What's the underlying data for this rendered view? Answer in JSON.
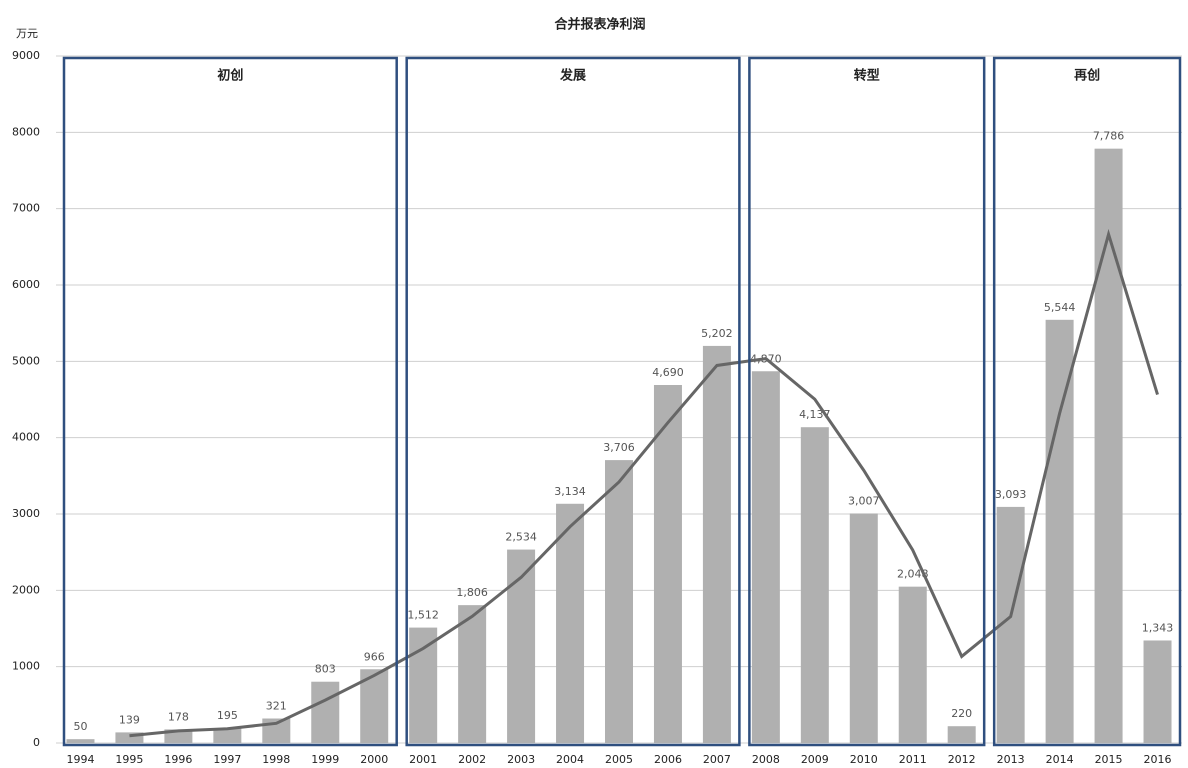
{
  "chart_data": {
    "type": "bar",
    "title": "合并报表净利润",
    "y_label": "万元",
    "categories": [
      "1994",
      "1995",
      "1996",
      "1997",
      "1998",
      "1999",
      "2000",
      "2001",
      "2002",
      "2003",
      "2004",
      "2005",
      "2006",
      "2007",
      "2008",
      "2009",
      "2010",
      "2011",
      "2012",
      "2013",
      "2014",
      "2015",
      "2016"
    ],
    "series": [
      {
        "type": "bar",
        "color": "#b0b0b0",
        "values": [
          50,
          139,
          178,
          195,
          321,
          803,
          966,
          1512,
          1806,
          2534,
          3134,
          3706,
          4690,
          5202,
          4870,
          4137,
          3007,
          2048,
          220,
          3093,
          5544,
          7786,
          1343
        ],
        "value_labels": [
          "50",
          "139",
          "178",
          "195",
          "321",
          "803",
          "966",
          "1,512",
          "1,806",
          "2,534",
          "3,134",
          "3,706",
          "4,690",
          "5,202",
          "4,870",
          "4,137",
          "3,007",
          "2,048",
          "220",
          "3,093",
          "5,544",
          "7,786",
          "1,343"
        ]
      },
      {
        "type": "line",
        "color": "#666666",
        "values": [
          null,
          94.5,
          158.5,
          186.5,
          258,
          562,
          884.5,
          1239,
          1659,
          2170,
          2834,
          3420,
          4198,
          4946,
          5036,
          4503.5,
          3572,
          2527.5,
          1134,
          1656.5,
          4318.5,
          6665,
          4564.5
        ]
      }
    ],
    "phases": [
      {
        "label": "初创",
        "from": "1994",
        "to": "2000"
      },
      {
        "label": "发展",
        "from": "2001",
        "to": "2007"
      },
      {
        "label": "转型",
        "from": "2008",
        "to": "2012"
      },
      {
        "label": "再创",
        "from": "2013",
        "to": "2016"
      }
    ],
    "ylim": [
      0,
      9000
    ],
    "yticks": [
      0,
      1000,
      2000,
      3000,
      4000,
      5000,
      6000,
      7000,
      8000,
      9000
    ],
    "grid": true,
    "box_color": "#2f4f7f"
  }
}
